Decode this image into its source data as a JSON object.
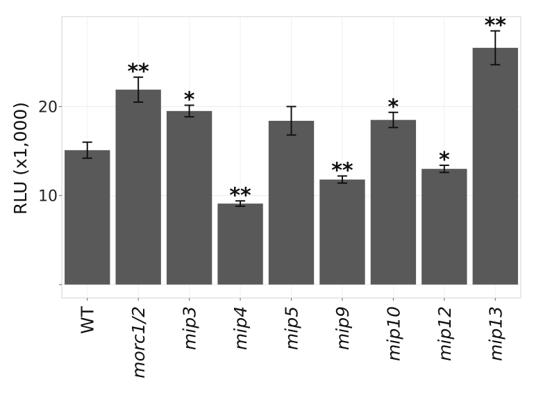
{
  "chart_data": {
    "type": "bar",
    "title": "",
    "xlabel": "",
    "ylabel": "RLU (x1,000)",
    "categories": [
      "WT",
      "morc1/2",
      "mip3",
      "mip4",
      "mip5",
      "mip9",
      "mip10",
      "mip12",
      "mip13"
    ],
    "italic_categories": [
      false,
      true,
      true,
      true,
      true,
      true,
      true,
      true,
      true
    ],
    "values": [
      15.1,
      21.9,
      19.5,
      9.1,
      18.4,
      11.8,
      18.5,
      13.0,
      26.6
    ],
    "errors": [
      0.9,
      1.4,
      0.65,
      0.3,
      1.6,
      0.4,
      0.85,
      0.4,
      1.9
    ],
    "significance": [
      "",
      "**",
      "*",
      "**",
      "",
      "**",
      "*",
      "*",
      "**"
    ],
    "yticks": [
      0,
      10,
      20
    ],
    "ytick_labels": [
      "",
      "10",
      "20"
    ],
    "ylim": [
      -1.5,
      30.1
    ],
    "grid": true,
    "bar_color": "#595959"
  }
}
